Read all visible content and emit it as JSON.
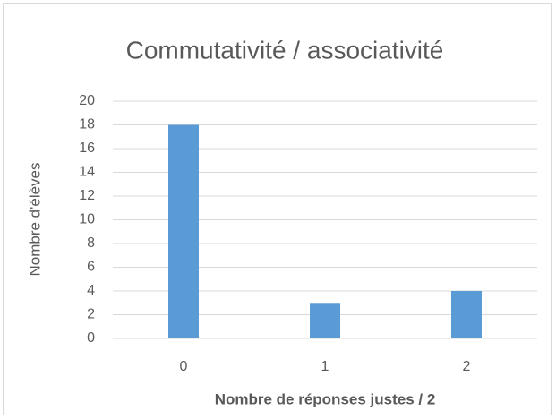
{
  "chart_data": {
    "type": "bar",
    "title": "Commutativité / associativité",
    "x_label": "Nombre de réponses justes / 2",
    "y_label": "Nombre d'élèves",
    "categories": [
      "0",
      "1",
      "2"
    ],
    "values": [
      18,
      3,
      4
    ],
    "color": "#5b9bd5",
    "ylim": [
      0,
      20
    ],
    "yticks": [
      0,
      2,
      4,
      6,
      8,
      10,
      12,
      14,
      16,
      18,
      20
    ],
    "grid": true
  }
}
